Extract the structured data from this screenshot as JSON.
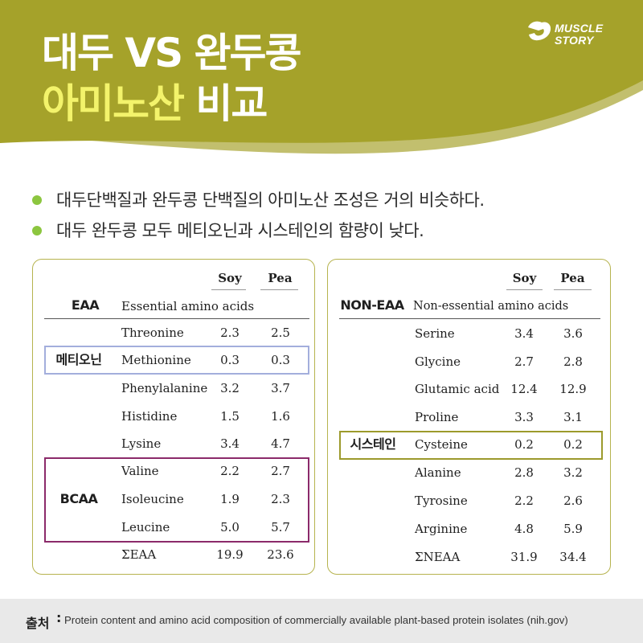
{
  "colors": {
    "header_bg": "#a5a22a",
    "header_wave": "#c2bf6e",
    "title_highlight": "#f3f36b",
    "bullet_dot": "#8cc63f",
    "card_border": "#b6b34e",
    "methionine_box": "#a3aedc",
    "bcaa_box": "#8b2a6a",
    "cysteine_box": "#9c9a2c",
    "footer_bg": "#e9e9e9"
  },
  "header": {
    "title_line1": "대두 VS 완두콩",
    "title_line2_highlight": "아미노산",
    "title_line2_rest": " 비교",
    "logo_line1": "MUSCLE",
    "logo_line2": "STORY"
  },
  "bullets": [
    "대두단백질과 완두콩 단백질의 아미노산 조성은 거의 비슷하다.",
    "대두 완두콩 모두 메티오닌과 시스테인의 함량이 낮다."
  ],
  "eaa_table": {
    "col_soy": "Soy",
    "col_pea": "Pea",
    "section_label": "EAA",
    "section_desc": "Essential amino acids",
    "rows": [
      {
        "name": "Threonine",
        "soy": "2.3",
        "pea": "2.5"
      },
      {
        "name": "Methionine",
        "soy": "0.3",
        "pea": "0.3"
      },
      {
        "name": "Phenylalanine",
        "soy": "3.2",
        "pea": "3.7"
      },
      {
        "name": "Histidine",
        "soy": "1.5",
        "pea": "1.6"
      },
      {
        "name": "Lysine",
        "soy": "3.4",
        "pea": "4.7"
      },
      {
        "name": "Valine",
        "soy": "2.2",
        "pea": "2.7"
      },
      {
        "name": "Isoleucine",
        "soy": "1.9",
        "pea": "2.3"
      },
      {
        "name": "Leucine",
        "soy": "5.0",
        "pea": "5.7"
      },
      {
        "name": "ΣEAA",
        "soy": "19.9",
        "pea": "23.6"
      }
    ],
    "methionine_label": "메티오닌",
    "bcaa_label": "BCAA"
  },
  "neaa_table": {
    "col_soy": "Soy",
    "col_pea": "Pea",
    "section_label": "NON-EAA",
    "section_desc": "Non-essential amino acids",
    "rows": [
      {
        "name": "Serine",
        "soy": "3.4",
        "pea": "3.6"
      },
      {
        "name": "Glycine",
        "soy": "2.7",
        "pea": "2.8"
      },
      {
        "name": "Glutamic acid",
        "soy": "12.4",
        "pea": "12.9"
      },
      {
        "name": "Proline",
        "soy": "3.3",
        "pea": "3.1"
      },
      {
        "name": "Cysteine",
        "soy": "0.2",
        "pea": "0.2"
      },
      {
        "name": "Alanine",
        "soy": "2.8",
        "pea": "3.2"
      },
      {
        "name": "Tyrosine",
        "soy": "2.2",
        "pea": "2.6"
      },
      {
        "name": "Arginine",
        "soy": "4.8",
        "pea": "5.9"
      },
      {
        "name": "ΣNEAA",
        "soy": "31.9",
        "pea": "34.4"
      }
    ],
    "cysteine_label": "시스테인"
  },
  "footer": {
    "source_label": "출처",
    "source_colon": ":",
    "source_text": "Protein content and amino acid composition of commercially available plant-based protein isolates (nih.gov)"
  }
}
